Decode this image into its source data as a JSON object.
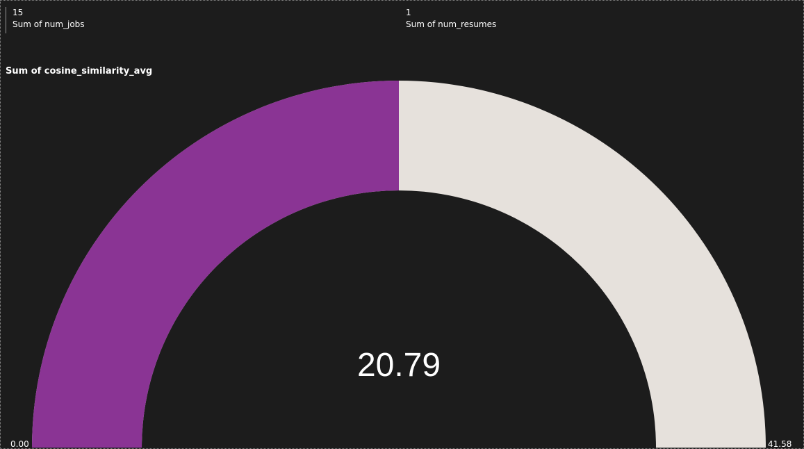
{
  "cards": [
    {
      "value": "15",
      "label": "Sum of num_jobs"
    },
    {
      "value": "1",
      "label": "Sum of num_resumes"
    }
  ],
  "gauge": {
    "title": "Sum of cosine_similarity_avg",
    "value_label": "20.79",
    "min_label": "0.00",
    "max_label": "41.58"
  },
  "chart_data": {
    "type": "gauge",
    "title": "Sum of cosine_similarity_avg",
    "value": 20.79,
    "min": 0.0,
    "max": 41.58,
    "fill_color": "#8a3494",
    "track_color": "#e6e1dc"
  }
}
